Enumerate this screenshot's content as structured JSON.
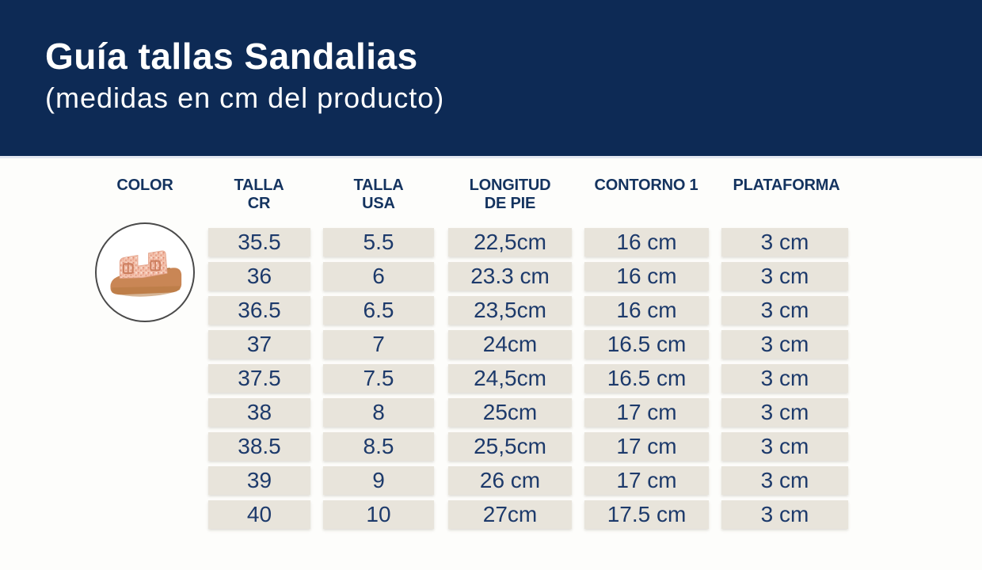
{
  "banner": {
    "title": "Guía tallas Sandalias",
    "subtitle": "(medidas en cm del producto)",
    "background_color": "#0d2a55",
    "text_color": "#ffffff"
  },
  "table": {
    "header_color": "#14335f",
    "cell_background": "#e8e4db",
    "cell_text_color": "#1d3a6b",
    "columns": [
      {
        "id": "color",
        "lines": [
          "COLOR"
        ]
      },
      {
        "id": "talla-cr",
        "lines": [
          "TALLA",
          "CR"
        ]
      },
      {
        "id": "talla-usa",
        "lines": [
          "TALLA",
          "USA"
        ]
      },
      {
        "id": "longitud",
        "lines": [
          "LONGITUD",
          "DE PIE"
        ]
      },
      {
        "id": "contorno",
        "lines": [
          "CONTORNO 1"
        ]
      },
      {
        "id": "plataforma",
        "lines": [
          "PLATAFORMA"
        ]
      }
    ]
  },
  "product_image": {
    "icon": "pink-glitter-platform-sandal",
    "strap_color": "#f3c2ad",
    "glitter_color": "#dd8e75",
    "buckle_color": "#cd7f5f",
    "sole_color": "#c98655"
  },
  "chart_data": {
    "type": "table",
    "title": "Guía tallas Sandalias",
    "subtitle": "(medidas en cm del producto)",
    "columns": [
      "COLOR",
      "TALLA CR",
      "TALLA USA",
      "LONGITUD DE PIE",
      "CONTORNO 1",
      "PLATAFORMA"
    ],
    "color_column_content": "photo of pink glitter platform sandal in circle",
    "rows": [
      [
        "35.5",
        "5.5",
        "22,5cm",
        "16 cm",
        "3 cm"
      ],
      [
        "36",
        "6",
        "23.3 cm",
        "16 cm",
        "3 cm"
      ],
      [
        "36.5",
        "6.5",
        "23,5cm",
        "16 cm",
        "3 cm"
      ],
      [
        "37",
        "7",
        "24cm",
        "16.5 cm",
        "3 cm"
      ],
      [
        "37.5",
        "7.5",
        "24,5cm",
        "16.5 cm",
        "3 cm"
      ],
      [
        "38",
        "8",
        "25cm",
        "17 cm",
        "3 cm"
      ],
      [
        "38.5",
        "8.5",
        "25,5cm",
        "17 cm",
        "3 cm"
      ],
      [
        "39",
        "9",
        "26 cm",
        "17 cm",
        "3 cm"
      ],
      [
        "40",
        "10",
        "27cm",
        "17.5 cm",
        "3 cm"
      ]
    ]
  }
}
